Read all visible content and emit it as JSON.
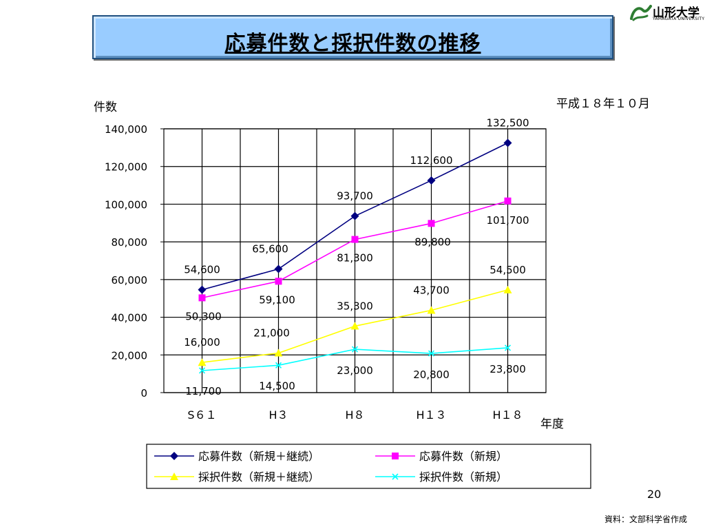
{
  "slide": {
    "title": "応募件数と採択件数の推移",
    "date": "平成１８年１０月",
    "page_number": "20",
    "source": "資料：文部科学省作成"
  },
  "logo": {
    "name": "山形大学",
    "subtitle": "YAMAGATA UNIVERSITY"
  },
  "chart_data": {
    "type": "line",
    "title": "",
    "ylabel": "件数",
    "xlabel": "年度",
    "categories": [
      "S61",
      "H3",
      "H8",
      "H13",
      "H18"
    ],
    "category_labels": [
      "S６１",
      "H３",
      "H８",
      "H１３",
      "H１８"
    ],
    "ylim": [
      0,
      140000
    ],
    "yticks": [
      0,
      20000,
      40000,
      60000,
      80000,
      100000,
      120000,
      140000
    ],
    "ytick_labels": [
      "0",
      "20,000",
      "40,000",
      "60,000",
      "80,000",
      "100,000",
      "120,000",
      "140,000"
    ],
    "grid": true,
    "legend_position": "bottom",
    "series": [
      {
        "name": "応募件数（新規＋継続）",
        "values": [
          54600,
          65600,
          93700,
          112600,
          132500
        ],
        "labels": [
          "54,600",
          "65,600",
          "93,700",
          "112,600",
          "132,500"
        ],
        "color": "#000080",
        "marker": "diamond"
      },
      {
        "name": "応募件数（新規）",
        "values": [
          50300,
          59100,
          81300,
          89800,
          101700
        ],
        "labels": [
          "50,300",
          "59,100",
          "81,300",
          "89,800",
          "101,700"
        ],
        "color": "#ff00ff",
        "marker": "square"
      },
      {
        "name": "採択件数（新規＋継続）",
        "values": [
          16000,
          21000,
          35300,
          43700,
          54500
        ],
        "labels": [
          "16,000",
          "21,000",
          "35,300",
          "43,700",
          "54,500"
        ],
        "color": "#ffff00",
        "marker": "triangle"
      },
      {
        "name": "採択件数（新規）",
        "values": [
          11700,
          14500,
          23000,
          20800,
          23800
        ],
        "labels": [
          "11,700",
          "14,500",
          "23,000",
          "20,800",
          "23,800"
        ],
        "color": "#00ffff",
        "marker": "x"
      }
    ]
  }
}
